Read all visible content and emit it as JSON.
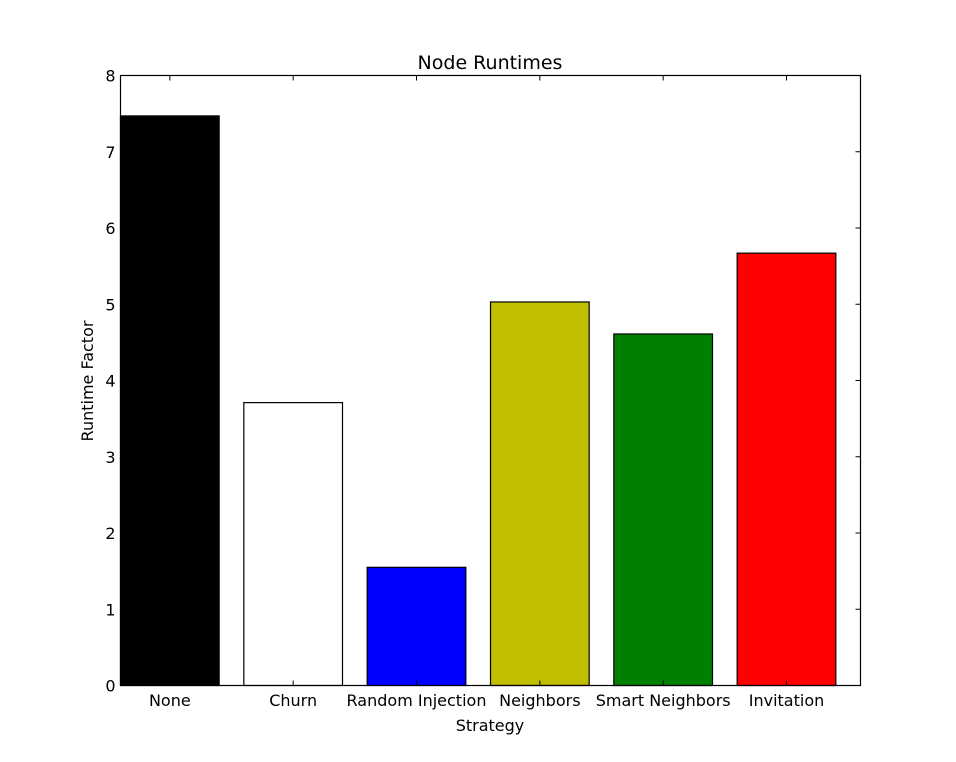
{
  "chart_data": {
    "type": "bar",
    "title": "Node Runtimes",
    "xlabel": "Strategy",
    "ylabel": "Runtime Factor",
    "ylim": [
      0,
      8
    ],
    "yticks": [
      "0",
      "1",
      "2",
      "3",
      "4",
      "5",
      "6",
      "7",
      "8"
    ],
    "categories": [
      "None",
      "Churn",
      "Random Injection",
      "Neighbors",
      "Smart Neighbors",
      "Invitation"
    ],
    "values": [
      7.47,
      3.71,
      1.55,
      5.03,
      4.61,
      5.67
    ],
    "colors": [
      "#000000",
      "#ffffff",
      "#0000ff",
      "#bfbf00",
      "#008000",
      "#ff0000"
    ],
    "grid": false
  }
}
